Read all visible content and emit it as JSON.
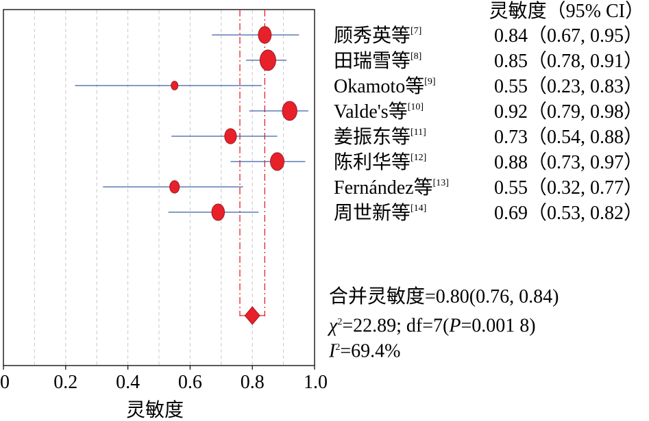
{
  "chart_data": {
    "type": "forest",
    "header": "灵敏度（95% CI）",
    "xlabel": "灵敏度",
    "xlim": [
      0,
      1.0
    ],
    "ticks": [
      "0",
      "0.2",
      "0.4",
      "0.6",
      "0.8",
      "1.0"
    ],
    "tick_values": [
      0,
      0.2,
      0.4,
      0.6,
      0.8,
      1.0
    ],
    "grid": true,
    "studies": [
      {
        "name": "顾秀英等",
        "ref": "[7]",
        "value": 0.84,
        "lo": 0.67,
        "hi": 0.95,
        "ci_text": "0.84（0.67, 0.95）"
      },
      {
        "name": "田瑞雪等",
        "ref": "[8]",
        "value": 0.85,
        "lo": 0.78,
        "hi": 0.91,
        "ci_text": "0.85（0.78, 0.91）"
      },
      {
        "name": "Okamoto等",
        "ref": "[9]",
        "value": 0.55,
        "lo": 0.23,
        "hi": 0.83,
        "ci_text": "0.55（0.23, 0.83）"
      },
      {
        "name": "Valde's等",
        "ref": "[10]",
        "value": 0.92,
        "lo": 0.79,
        "hi": 0.98,
        "ci_text": "0.92（0.79, 0.98）"
      },
      {
        "name": "姜振东等",
        "ref": "[11]",
        "value": 0.73,
        "lo": 0.54,
        "hi": 0.88,
        "ci_text": "0.73（0.54, 0.88）"
      },
      {
        "name": "陈利华等",
        "ref": "[12]",
        "value": 0.88,
        "lo": 0.73,
        "hi": 0.97,
        "ci_text": "0.88（0.73, 0.97）"
      },
      {
        "name": "Fernández等",
        "ref": "[13]",
        "value": 0.55,
        "lo": 0.32,
        "hi": 0.77,
        "ci_text": "0.55（0.32, 0.77）"
      },
      {
        "name": "周世新等",
        "ref": "[14]",
        "value": 0.69,
        "lo": 0.53,
        "hi": 0.82,
        "ci_text": "0.69（0.53, 0.82）"
      }
    ],
    "pooled": {
      "value": 0.8,
      "lo": 0.76,
      "hi": 0.84
    },
    "stats_text": {
      "pooled": "合并灵敏度=0.80(0.76, 0.84)",
      "chi_prefix": "χ",
      "chi_rest": "=22.89; df=7(",
      "p_label": "P",
      "p_rest": "=0.001 8)",
      "i_prefix": "I",
      "i_rest": "=69.4%"
    },
    "colors": {
      "marker": "#e8202a",
      "ci_line": "#3a5fa8",
      "ref_line": "#e8202a",
      "grid": "#c8c8c8"
    }
  }
}
